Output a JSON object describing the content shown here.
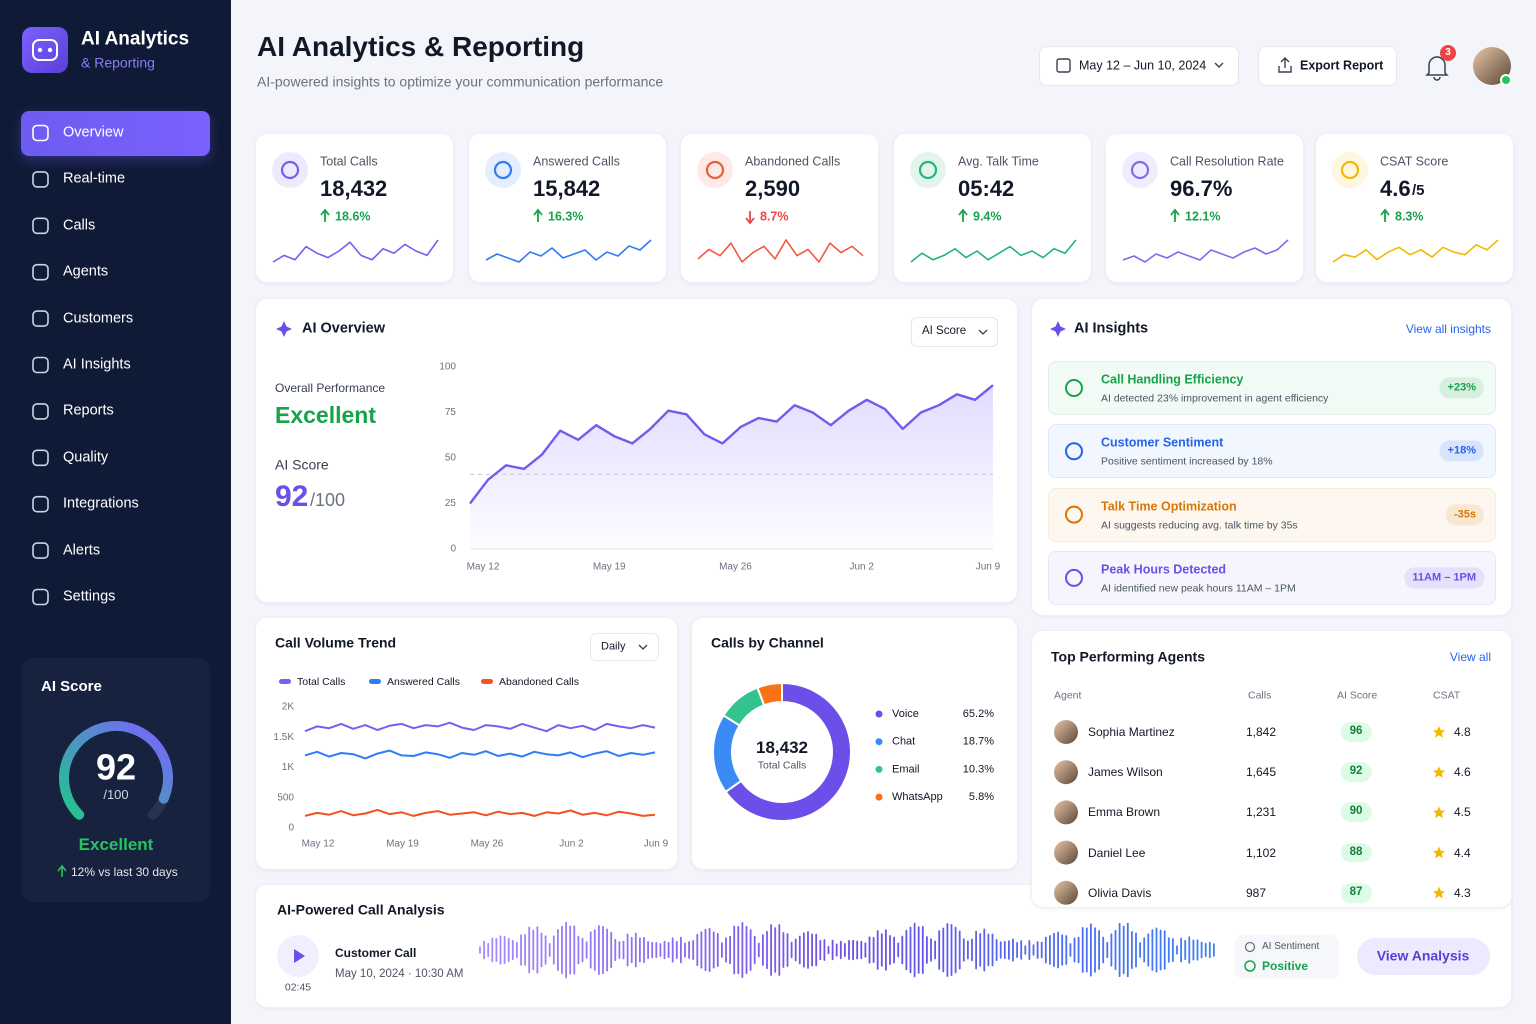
{
  "sidebar": {
    "brand": {
      "title": "AI Analytics",
      "subtitle": "& Reporting"
    },
    "nav": [
      {
        "label": "Overview",
        "active": true
      },
      {
        "label": "Real-time"
      },
      {
        "label": "Calls"
      },
      {
        "label": "Agents"
      },
      {
        "label": "Customers"
      },
      {
        "label": "AI Insights"
      },
      {
        "label": "Reports"
      },
      {
        "label": "Quality"
      },
      {
        "label": "Integrations"
      },
      {
        "label": "Alerts"
      },
      {
        "label": "Settings"
      }
    ],
    "score_card": {
      "title": "AI Score",
      "value": 92,
      "max": {
        "value": 100,
        "label": "/100"
      },
      "rating": "Excellent",
      "change": "12% vs last 30 days"
    }
  },
  "header": {
    "title": "AI Analytics & Reporting",
    "subtitle": "AI-powered insights to optimize your communication performance",
    "date_range": "May 12 – Jun 10, 2024",
    "export_button": "Export Report",
    "notifications": 3
  },
  "kpis": [
    {
      "label": "Total Calls",
      "value": "18,432",
      "change": "18.6%",
      "trend": "up",
      "color": "#7c5cf0",
      "sparkline": [
        5,
        8,
        6,
        12,
        9,
        7,
        10,
        14,
        8,
        6,
        11,
        9,
        13,
        10,
        8,
        15
      ]
    },
    {
      "label": "Answered Calls",
      "value": "15,842",
      "change": "16.3%",
      "trend": "up",
      "color": "#2f7cf6",
      "sparkline": [
        6,
        9,
        7,
        5,
        10,
        8,
        12,
        7,
        9,
        11,
        6,
        10,
        8,
        13,
        11,
        16
      ]
    },
    {
      "label": "Abandoned Calls",
      "value": "2,590",
      "change": "8.7%",
      "trend": "down",
      "color": "#f05a3a",
      "sparkline": [
        7,
        10,
        8,
        12,
        6,
        9,
        11,
        7,
        13,
        8,
        10,
        6,
        12,
        9,
        11,
        8
      ]
    },
    {
      "label": "Avg. Talk Time",
      "value": "05:42",
      "change": "9.4%",
      "trend": "up",
      "color": "#22b573",
      "sparkline": [
        5,
        9,
        6,
        8,
        11,
        7,
        10,
        6,
        9,
        12,
        8,
        10,
        7,
        11,
        9,
        15
      ]
    },
    {
      "label": "Call Resolution Rate",
      "value": "96.7%",
      "change": "12.1%",
      "trend": "up",
      "color": "#7c6cf0",
      "sparkline": [
        6,
        8,
        5,
        9,
        7,
        10,
        8,
        6,
        11,
        9,
        7,
        10,
        12,
        9,
        11,
        16
      ]
    },
    {
      "label": "CSAT Score",
      "value": "4.6",
      "value_suffix": "/5",
      "change": "8.3%",
      "trend": "up",
      "color": "#f5b800",
      "sparkline": [
        6,
        9,
        8,
        11,
        7,
        10,
        12,
        9,
        11,
        8,
        12,
        10,
        9,
        13,
        11,
        15
      ]
    }
  ],
  "ai_overview": {
    "title": "AI Overview",
    "metric_selector": "AI Score",
    "performance_label": "Overall Performance",
    "performance": "Excellent",
    "score_label": "AI Score",
    "score": 92,
    "score_suffix": "/100",
    "chart": {
      "type": "area",
      "categories": [
        "May 12",
        null,
        null,
        null,
        null,
        null,
        null,
        "May 19",
        null,
        null,
        null,
        null,
        null,
        null,
        "May 26",
        null,
        null,
        null,
        null,
        null,
        null,
        "Jun 2",
        null,
        null,
        null,
        null,
        null,
        null,
        "Jun 9",
        null
      ],
      "values": [
        25,
        38,
        46,
        44,
        52,
        65,
        60,
        68,
        62,
        58,
        66,
        76,
        74,
        63,
        58,
        67,
        72,
        70,
        79,
        75,
        68,
        76,
        82,
        77,
        66,
        75,
        79,
        85,
        82,
        90
      ],
      "color": "#6d5ef0",
      "ylim": [
        0,
        100
      ],
      "yticks": [
        0,
        25,
        50,
        75,
        100
      ],
      "reference_line": 41
    }
  },
  "ai_insights": {
    "title": "AI Insights",
    "link": "View all insights",
    "items": [
      {
        "title": "Call Handling Efficiency",
        "description": "AI detected 23% improvement in agent efficiency",
        "badge": "+23%",
        "color": "#16a34a"
      },
      {
        "title": "Customer Sentiment",
        "description": "Positive sentiment increased by 18%",
        "badge": "+18%",
        "color": "#2563eb"
      },
      {
        "title": "Talk Time Optimization",
        "description": "AI suggests reducing avg. talk time by 35s",
        "badge": "-35s",
        "color": "#d97706"
      },
      {
        "title": "Peak Hours Detected",
        "description": "AI identified new peak hours 11AM – 1PM",
        "badge": "11AM – 1PM",
        "color": "#6d4ee8"
      }
    ]
  },
  "call_volume": {
    "title": "Call Volume Trend",
    "period": "Daily",
    "chart": {
      "type": "line",
      "categories": [
        "May 12",
        null,
        null,
        null,
        null,
        null,
        null,
        "May 19",
        null,
        null,
        null,
        null,
        null,
        null,
        "May 26",
        null,
        null,
        null,
        null,
        null,
        null,
        "Jun 2",
        null,
        null,
        null,
        null,
        null,
        null,
        "Jun 9",
        null
      ],
      "series": [
        {
          "name": "Total Calls",
          "color": "#7c5cf0",
          "values": [
            1600,
            1680,
            1650,
            1720,
            1640,
            1700,
            1620,
            1690,
            1720,
            1650,
            1700,
            1680,
            1740,
            1660,
            1620,
            1700,
            1680,
            1640,
            1720,
            1660,
            1600,
            1700,
            1650,
            1690,
            1620,
            1720,
            1680,
            1650,
            1700,
            1660
          ]
        },
        {
          "name": "Answered Calls",
          "color": "#2f7cf6",
          "values": [
            1200,
            1260,
            1180,
            1240,
            1220,
            1150,
            1230,
            1280,
            1200,
            1190,
            1250,
            1220,
            1160,
            1240,
            1210,
            1270,
            1190,
            1230,
            1180,
            1260,
            1220,
            1200,
            1250,
            1170,
            1230,
            1270,
            1190,
            1240,
            1210,
            1250
          ]
        },
        {
          "name": "Abandoned Calls",
          "color": "#f4511e",
          "values": [
            200,
            250,
            220,
            280,
            210,
            240,
            300,
            230,
            260,
            200,
            250,
            280,
            220,
            240,
            260,
            210,
            270,
            230,
            250,
            200,
            260,
            240,
            290,
            220,
            250,
            210,
            270,
            240,
            200,
            220
          ]
        }
      ],
      "ylim": [
        0,
        2000
      ],
      "yticks": [
        0,
        500,
        {
          "value": 1000,
          "label": "1K"
        },
        {
          "value": 1500,
          "label": "1.5K"
        },
        {
          "value": 2000,
          "label": "2K"
        }
      ]
    }
  },
  "calls_by_channel": {
    "type": "donut",
    "title": "Calls by Channel",
    "center_value": "18,432",
    "center_label": "Total Calls",
    "categories": [
      "Voice",
      "Chat",
      "Email",
      "WhatsApp"
    ],
    "values": [
      65.2,
      18.7,
      10.3,
      5.8
    ],
    "value_labels": [
      "65.2%",
      "18.7%",
      "10.3%",
      "5.8%"
    ],
    "colors": [
      "#6d4ee8",
      "#3b8bf6",
      "#34c38f",
      "#f97316"
    ]
  },
  "top_agents": {
    "title": "Top Performing Agents",
    "link": "View all",
    "columns": [
      "Agent",
      "Calls",
      "AI Score",
      "CSAT"
    ],
    "rows": [
      [
        "Sophia Martinez",
        "1,842",
        96,
        4.8
      ],
      [
        "James Wilson",
        "1,645",
        92,
        4.6
      ],
      [
        "Emma Brown",
        "1,231",
        90,
        4.5
      ],
      [
        "Daniel Lee",
        "1,102",
        88,
        4.4
      ],
      [
        "Olivia Davis",
        987,
        87,
        4.3
      ]
    ]
  },
  "call_analysis": {
    "title": "AI-Powered Call Analysis",
    "call_title": "Customer Call",
    "call_time": "May 10, 2024 · 10:30 AM",
    "duration": "02:45",
    "sentiment_label": "AI Sentiment",
    "sentiment": "Positive",
    "button": "View Analysis"
  }
}
